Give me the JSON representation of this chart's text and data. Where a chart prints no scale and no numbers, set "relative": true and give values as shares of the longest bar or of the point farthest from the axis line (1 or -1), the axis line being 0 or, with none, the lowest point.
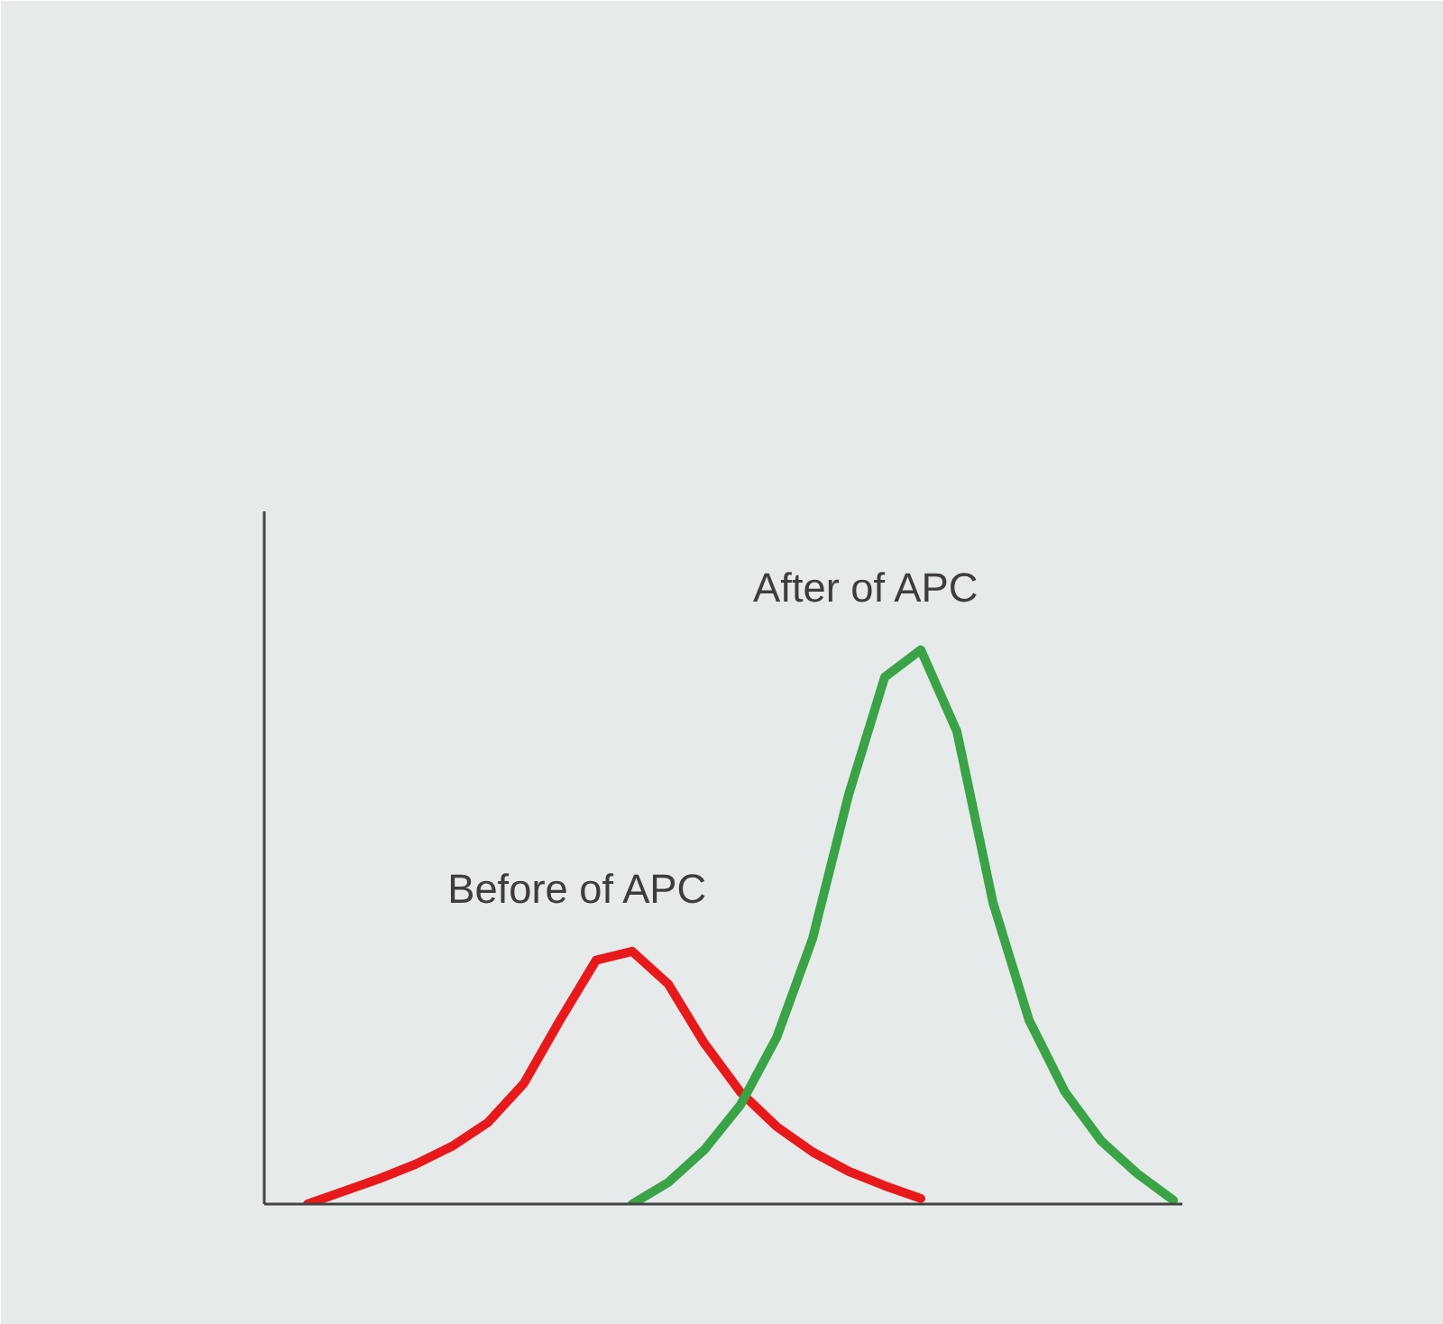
{
  "chart_data": {
    "type": "line",
    "relative": true,
    "tick_labels": false,
    "categories": [
      null,
      null,
      null,
      null,
      null,
      null,
      null,
      null,
      null,
      null,
      null,
      null,
      null,
      null,
      null,
      null,
      null,
      null,
      null,
      null,
      null,
      null,
      null,
      null,
      null
    ],
    "series": [
      {
        "name": "Before of APC",
        "color": "#e8191a",
        "values": [
          0,
          0.023,
          0.046,
          0.072,
          0.104,
          0.147,
          0.218,
          0.332,
          0.44,
          0.456,
          0.397,
          0.29,
          0.202,
          0.14,
          0.094,
          0.059,
          0.033,
          0.01,
          null,
          null,
          null,
          null,
          null,
          null,
          null
        ]
      },
      {
        "name": "After of APC",
        "color": "#3aa346",
        "values": [
          null,
          null,
          null,
          null,
          null,
          null,
          null,
          null,
          null,
          0,
          0.039,
          0.098,
          0.179,
          0.3,
          0.479,
          0.739,
          0.951,
          1,
          0.853,
          0.544,
          0.332,
          0.202,
          0.114,
          0.055,
          0.007
        ]
      }
    ]
  }
}
